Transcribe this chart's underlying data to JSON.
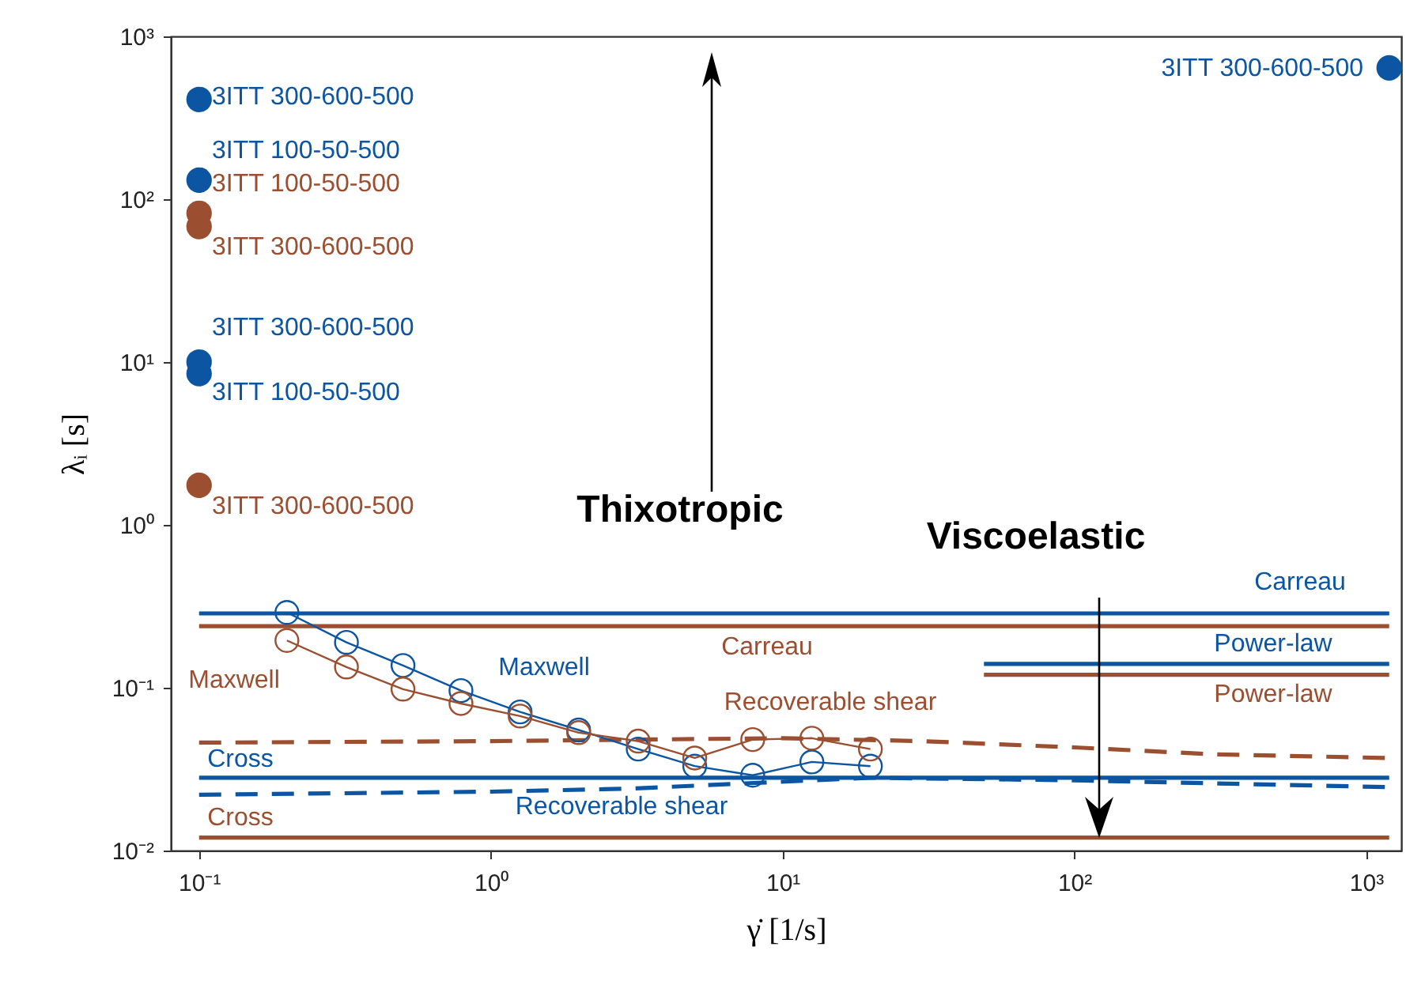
{
  "chart_data": {
    "type": "line",
    "xlabel": "γ̇ [1/s]",
    "ylabel": "λᵢ [s]",
    "log": "xy",
    "xlim": [
      0.08,
      1320
    ],
    "ylim": [
      0.01,
      1000
    ],
    "xticks": [
      {
        "value": 0.1,
        "label": "10⁻¹"
      },
      {
        "value": 1,
        "label": "10⁰"
      },
      {
        "value": 10,
        "label": "10¹"
      },
      {
        "value": 100,
        "label": "10²"
      },
      {
        "value": 1000,
        "label": "10³"
      }
    ],
    "yticks": [
      {
        "value": 0.01,
        "label": "10⁻²"
      },
      {
        "value": 0.1,
        "label": "10⁻¹"
      },
      {
        "value": 1,
        "label": "10⁰"
      },
      {
        "value": 10,
        "label": "10¹"
      },
      {
        "value": 100,
        "label": "10²"
      },
      {
        "value": 1000,
        "label": "10³"
      }
    ],
    "series": [
      {
        "name": "Carreau",
        "color": "#0b55a3",
        "line_style": "solid",
        "x": [
          0.1,
          1200
        ],
        "values": [
          0.286,
          0.286
        ]
      },
      {
        "name": "Carreau",
        "color": "#9b4f30",
        "line_style": "solid",
        "x": [
          0.1,
          1200
        ],
        "values": [
          0.239,
          0.239
        ]
      },
      {
        "name": "Power-law",
        "color": "#0b55a3",
        "line_style": "solid",
        "x": [
          49,
          1200
        ],
        "values": [
          0.14,
          0.14
        ]
      },
      {
        "name": "Power-law",
        "color": "#9b4f30",
        "line_style": "solid",
        "x": [
          49,
          1200
        ],
        "values": [
          0.12,
          0.12
        ]
      },
      {
        "name": "Cross",
        "color": "#0b55a3",
        "line_style": "solid",
        "x": [
          0.1,
          1200
        ],
        "values": [
          0.028,
          0.028
        ]
      },
      {
        "name": "Cross",
        "color": "#9b4f30",
        "line_style": "solid",
        "x": [
          0.1,
          1200
        ],
        "values": [
          0.012,
          0.012
        ]
      },
      {
        "name": "Recoverable shear",
        "color": "#9b4f30",
        "line_style": "dashed",
        "x": [
          0.1,
          1,
          10,
          30,
          100,
          300,
          1200
        ],
        "values": [
          0.046,
          0.047,
          0.049,
          0.047,
          0.043,
          0.039,
          0.037
        ]
      },
      {
        "name": "Recoverable shear",
        "color": "#0b55a3",
        "line_style": "dashed",
        "x": [
          0.1,
          1,
          3,
          8,
          20,
          100,
          1200
        ],
        "values": [
          0.022,
          0.023,
          0.024,
          0.026,
          0.028,
          0.027,
          0.0245
        ]
      },
      {
        "name": "Maxwell",
        "color": "#0b55a3",
        "line_style": "solid",
        "marker": "circle",
        "x": [
          0.2,
          0.32,
          0.5,
          0.79,
          1.26,
          2,
          3.2,
          5,
          7.9,
          12.6,
          20
        ],
        "values": [
          0.29,
          0.19,
          0.137,
          0.096,
          0.071,
          0.055,
          0.042,
          0.033,
          0.029,
          0.035,
          0.033
        ]
      },
      {
        "name": "Maxwell",
        "color": "#9b4f30",
        "line_style": "solid",
        "marker": "circle",
        "x": [
          0.2,
          0.32,
          0.5,
          0.79,
          1.26,
          2,
          3.2,
          5,
          7.9,
          12.6,
          20
        ],
        "values": [
          0.195,
          0.134,
          0.098,
          0.08,
          0.067,
          0.053,
          0.047,
          0.037,
          0.048,
          0.049,
          0.042
        ]
      },
      {
        "type": "scatter",
        "name": "3ITT 300-600-500",
        "color": "#0b55a3",
        "x": [
          0.1
        ],
        "values": [
          410
        ]
      },
      {
        "type": "scatter",
        "name": "3ITT 100-50-500",
        "color": "#0b55a3",
        "x": [
          0.1
        ],
        "values": [
          131
        ]
      },
      {
        "type": "scatter",
        "name": "3ITT 100-50-500",
        "color": "#9b4f30",
        "x": [
          0.1
        ],
        "values": [
          82
        ]
      },
      {
        "type": "scatter",
        "name": "3ITT 300-600-500",
        "color": "#9b4f30",
        "x": [
          0.1
        ],
        "values": [
          68
        ]
      },
      {
        "type": "scatter",
        "name": "3ITT 300-600-500",
        "color": "#0b55a3",
        "x": [
          0.1
        ],
        "values": [
          10
        ]
      },
      {
        "type": "scatter",
        "name": "3ITT 100-50-500",
        "color": "#0b55a3",
        "x": [
          0.1
        ],
        "values": [
          8.5
        ]
      },
      {
        "type": "scatter",
        "name": "3ITT 300-600-500",
        "color": "#9b4f30",
        "x": [
          0.1
        ],
        "values": [
          1.75
        ]
      },
      {
        "type": "scatter",
        "name": "3ITT 300-600-500",
        "color": "#0b55a3",
        "x": [
          1200
        ],
        "values": [
          640
        ]
      }
    ],
    "annotations": [
      "Thixotropic",
      "Viscoelastic"
    ]
  }
}
